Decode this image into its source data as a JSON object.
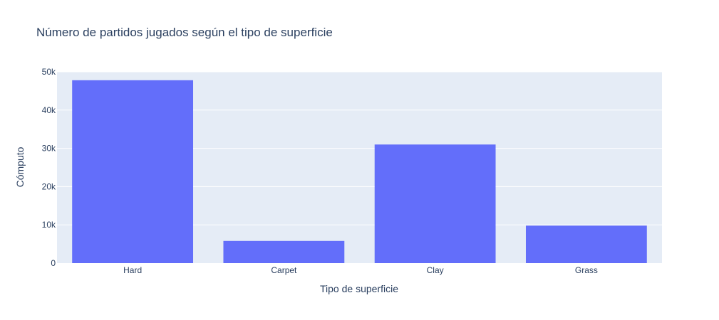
{
  "chart_data": {
    "type": "bar",
    "title": "Número de partidos jugados según el tipo de superficie",
    "xlabel": "Tipo de superficie",
    "ylabel": "Cómputo",
    "categories": [
      "Hard",
      "Carpet",
      "Clay",
      "Grass"
    ],
    "values": [
      47800,
      5800,
      31000,
      9800
    ],
    "ylim": [
      0,
      50000
    ],
    "yticks": [
      0,
      10000,
      20000,
      30000,
      40000,
      50000
    ],
    "ytick_labels": [
      "0",
      "10k",
      "20k",
      "30k",
      "40k",
      "50k"
    ],
    "grid": true,
    "legend": false
  },
  "colors": {
    "bar": "#636efa",
    "plot_bg": "#e5ecf6",
    "grid": "#ffffff",
    "text": "#2a3f5f"
  }
}
